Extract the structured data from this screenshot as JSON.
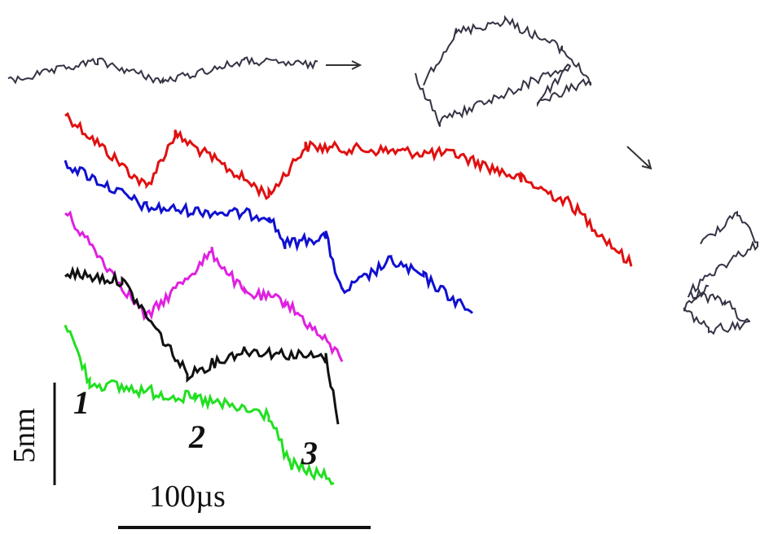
{
  "figure": {
    "labels": [
      "1",
      "2",
      "3"
    ],
    "scale_bars": {
      "vertical": "5nm",
      "horizontal": "100µs"
    }
  }
}
